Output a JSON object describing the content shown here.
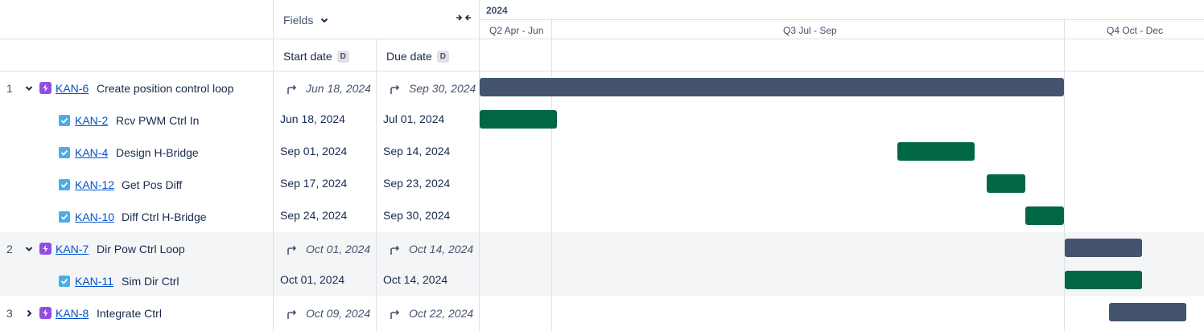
{
  "header": {
    "fields_label": "Fields",
    "year": "2024",
    "quarters": [
      "Q2 Apr - Jun",
      "Q3 Jul - Sep",
      "Q4 Oct - Dec"
    ],
    "start_date_label": "Start date",
    "due_date_label": "Due date",
    "date_badge": "D"
  },
  "rows": [
    {
      "num": "1",
      "key": "KAN-6",
      "summary": "Create position control loop",
      "start": "Jun 18, 2024",
      "due": "Sep 30, 2024"
    },
    {
      "key": "KAN-2",
      "summary": "Rcv PWM Ctrl In",
      "start": "Jun 18, 2024",
      "due": "Jul 01, 2024"
    },
    {
      "key": "KAN-4",
      "summary": "Design H-Bridge",
      "start": "Sep 01, 2024",
      "due": "Sep 14, 2024"
    },
    {
      "key": "KAN-12",
      "summary": "Get Pos Diff",
      "start": "Sep 17, 2024",
      "due": "Sep 23, 2024"
    },
    {
      "key": "KAN-10",
      "summary": "Diff Ctrl H-Bridge",
      "start": "Sep 24, 2024",
      "due": "Sep 30, 2024"
    },
    {
      "num": "2",
      "key": "KAN-7",
      "summary": "Dir Pow Ctrl Loop",
      "start": "Oct 01, 2024",
      "due": "Oct 14, 2024"
    },
    {
      "key": "KAN-11",
      "summary": "Sim Dir Ctrl",
      "start": "Oct 01, 2024",
      "due": "Oct 14, 2024"
    },
    {
      "num": "3",
      "key": "KAN-8",
      "summary": "Integrate Ctrl",
      "start": "Oct 09, 2024",
      "due": "Oct 22, 2024"
    }
  ],
  "colors": {
    "epic_bar": "#44546f",
    "task_bar": "#006644",
    "epic_icon": "#904ee2",
    "task_icon": "#4bade8",
    "link": "#0052cc"
  },
  "icons": {
    "fields_dropdown": "chevron-down-icon",
    "collapse_columns": "collapse-arrows-icon",
    "epic": "lightning-icon",
    "task": "checkbox-icon",
    "rolled_up_date": "rolled-up-arrow-icon"
  }
}
